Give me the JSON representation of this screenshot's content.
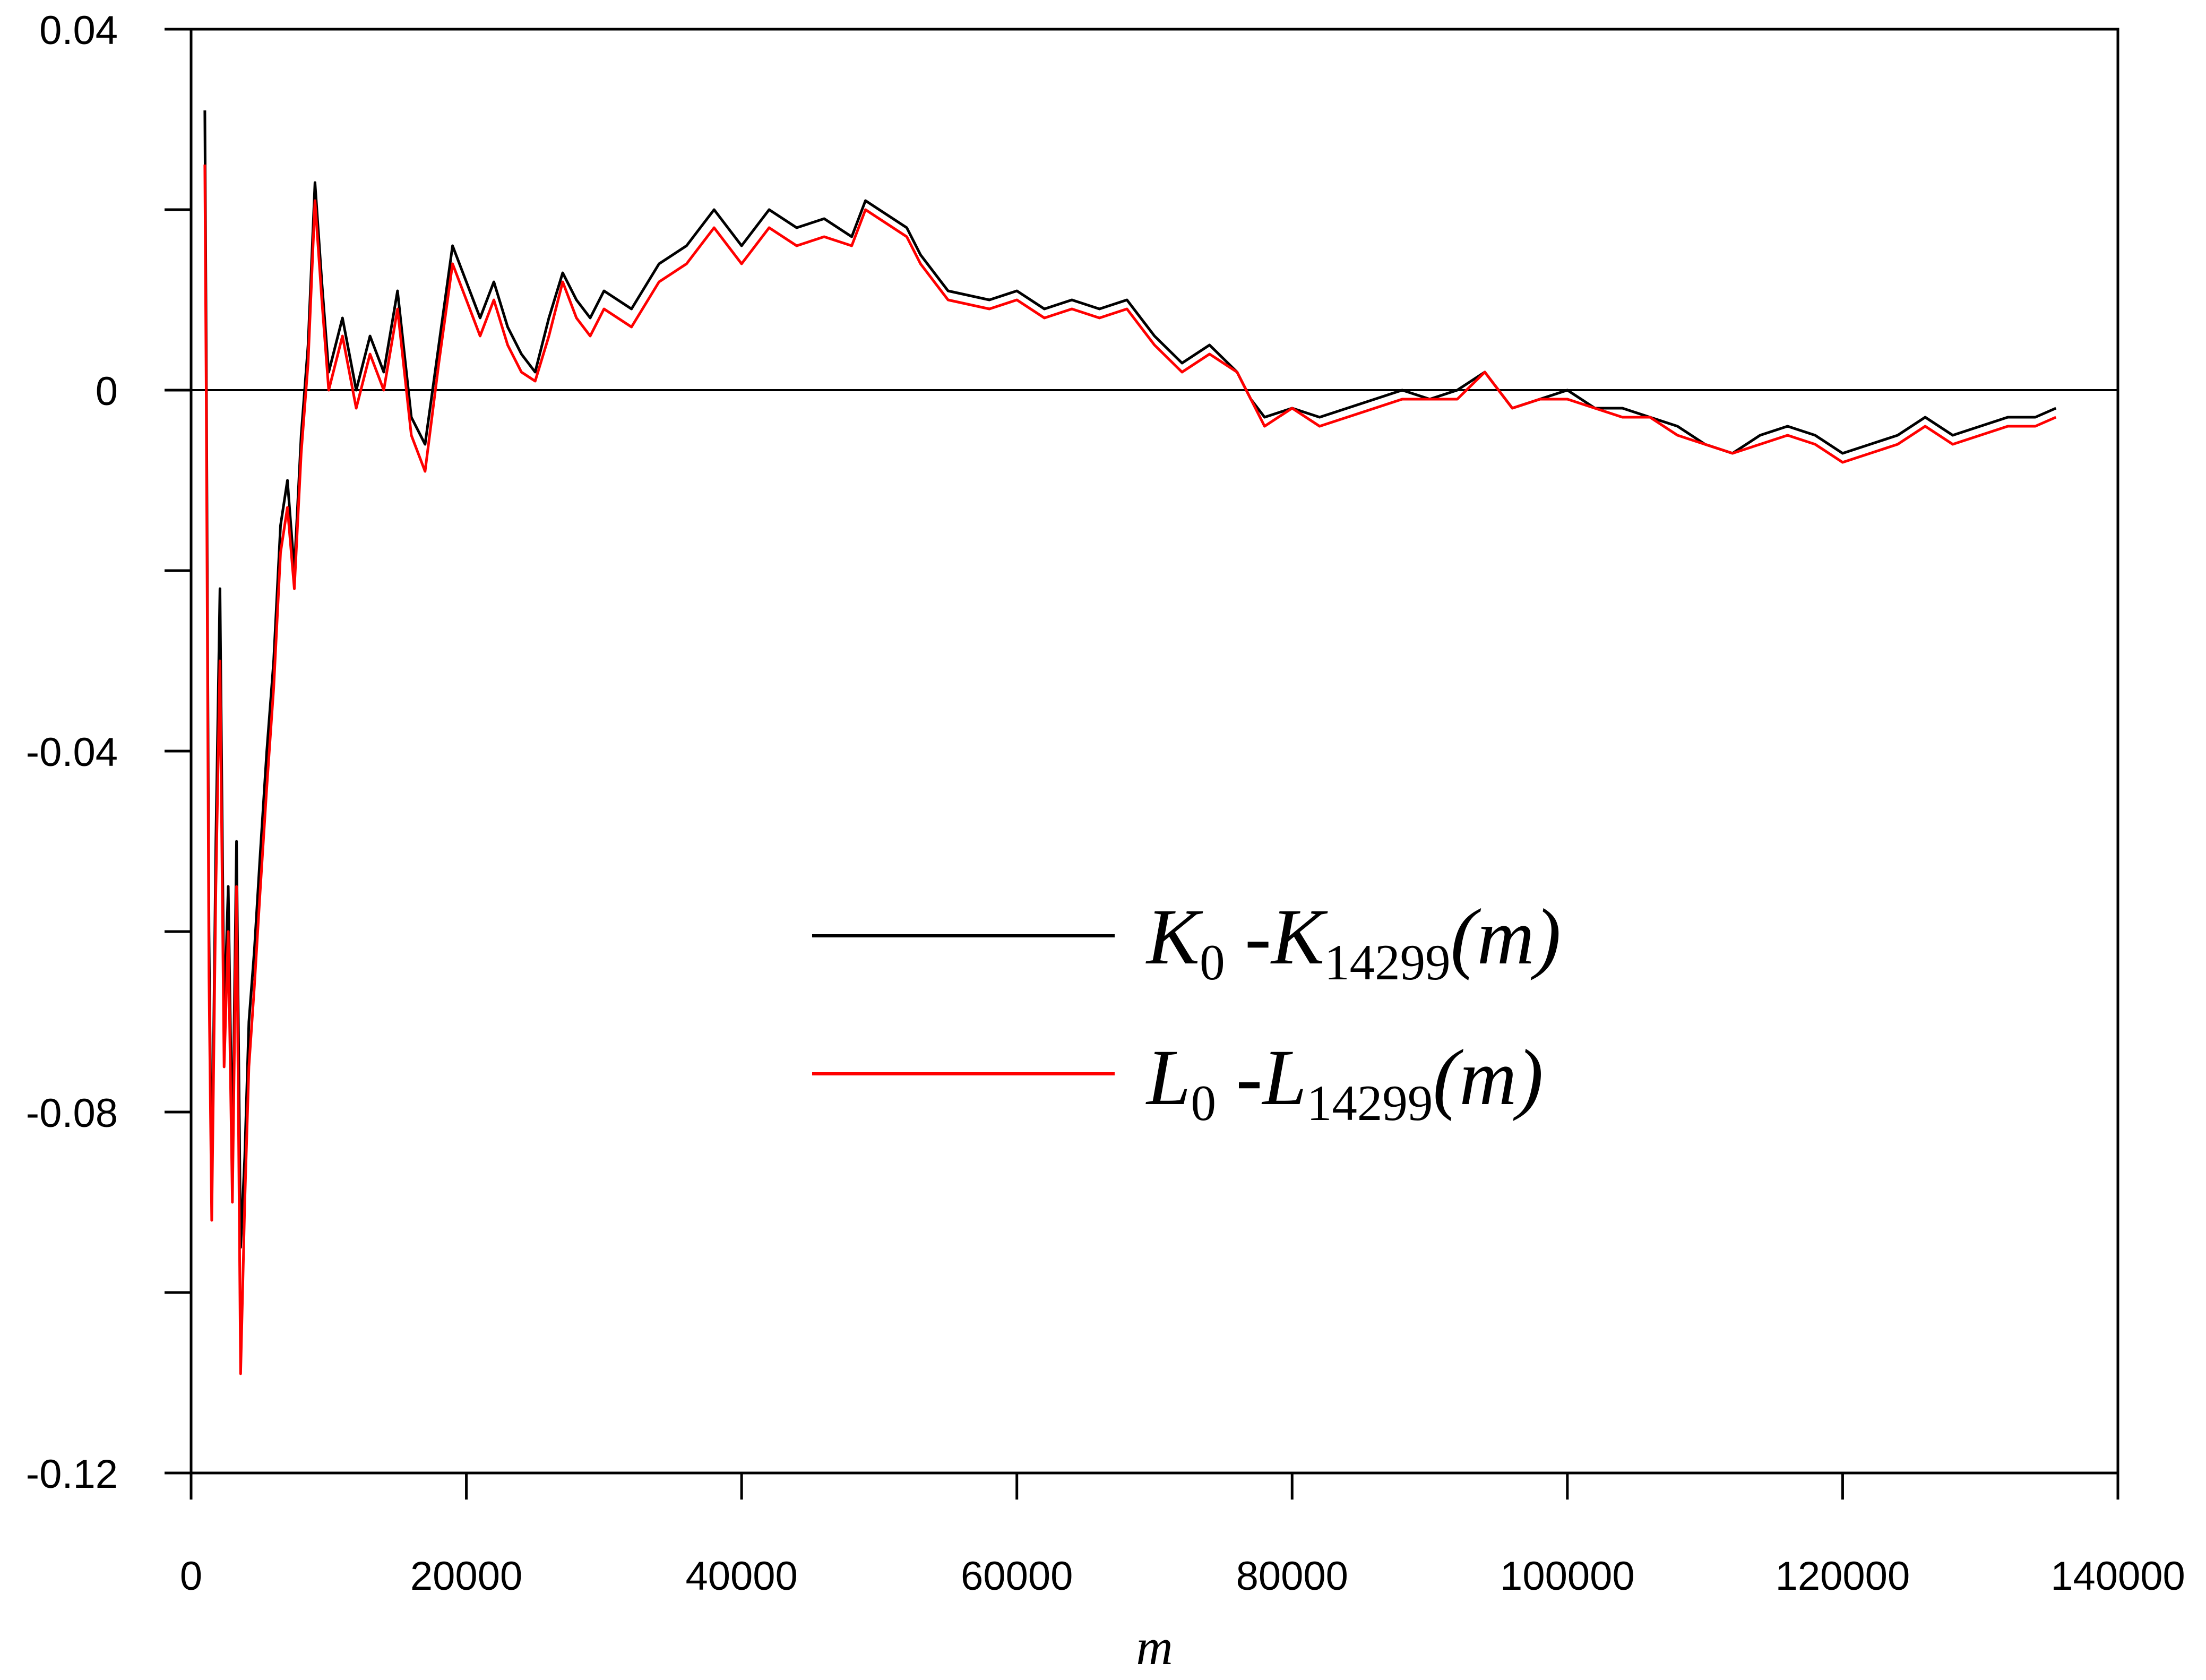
{
  "chart_data": {
    "type": "line",
    "title": "",
    "xlabel": "m",
    "ylabel": "",
    "xlim": [
      0,
      140000
    ],
    "ylim": [
      -0.12,
      0.04
    ],
    "x_ticks": [
      0,
      20000,
      40000,
      60000,
      80000,
      100000,
      120000,
      140000
    ],
    "x_tick_labels": [
      "0",
      "20000",
      "40000",
      "60000",
      "80000",
      "100000",
      "120000",
      "140000"
    ],
    "y_ticks": [
      -0.12,
      -0.1,
      -0.08,
      -0.06,
      -0.04,
      -0.02,
      0,
      0.02,
      0.04
    ],
    "y_tick_labels": {
      "-0.12": "-0.12",
      "-0.08": "-0.08",
      "-0.04": "-0.04",
      "0": "0",
      "0.04": "0.04"
    },
    "reference_line_y": 0,
    "grid": false,
    "legend_position": "center-right",
    "series": [
      {
        "name": "K0 -K14299(m)",
        "legend": {
          "main1": "K",
          "sub1": "0",
          "sep": " -",
          "main2": "K",
          "sub2": "14299",
          "arg": "(m)"
        },
        "color": "#000000",
        "x": [
          1000,
          1100,
          1300,
          1500,
          1800,
          2100,
          2400,
          2700,
          3000,
          3300,
          3600,
          3900,
          4200,
          4600,
          5000,
          5500,
          6000,
          6500,
          7000,
          7500,
          8000,
          8500,
          9000,
          9500,
          10000,
          11000,
          12000,
          13000,
          14000,
          15000,
          16000,
          17000,
          18000,
          19000,
          20000,
          21000,
          22000,
          23000,
          24000,
          25000,
          26000,
          27000,
          28000,
          29000,
          30000,
          32000,
          34000,
          36000,
          38000,
          40000,
          42000,
          44000,
          46000,
          48000,
          49000,
          50000,
          52000,
          53000,
          55000,
          58000,
          60000,
          62000,
          64000,
          66000,
          68000,
          70000,
          72000,
          74000,
          76000,
          77000,
          78000,
          80000,
          82000,
          84000,
          86000,
          88000,
          90000,
          92000,
          94000,
          96000,
          98000,
          100000,
          102000,
          104000,
          106000,
          108000,
          110000,
          112000,
          114000,
          116000,
          118000,
          120000,
          122000,
          124000,
          126000,
          128000,
          130000,
          132000,
          134000,
          135500
        ],
        "y": [
          0.031,
          0.005,
          -0.06,
          -0.09,
          -0.05,
          -0.022,
          -0.07,
          -0.055,
          -0.085,
          -0.05,
          -0.095,
          -0.085,
          -0.07,
          -0.062,
          -0.052,
          -0.04,
          -0.03,
          -0.015,
          -0.01,
          -0.02,
          -0.005,
          0.005,
          0.023,
          0.012,
          0.002,
          0.008,
          0.0,
          0.006,
          0.002,
          0.011,
          -0.003,
          -0.006,
          0.005,
          0.016,
          0.012,
          0.008,
          0.012,
          0.007,
          0.004,
          0.002,
          0.008,
          0.013,
          0.01,
          0.008,
          0.011,
          0.009,
          0.014,
          0.016,
          0.02,
          0.016,
          0.02,
          0.018,
          0.019,
          0.017,
          0.021,
          0.02,
          0.018,
          0.015,
          0.011,
          0.01,
          0.011,
          0.009,
          0.01,
          0.009,
          0.01,
          0.006,
          0.003,
          0.005,
          0.002,
          -0.001,
          -0.003,
          -0.002,
          -0.003,
          -0.002,
          -0.001,
          0.0,
          -0.001,
          0.0,
          0.002,
          -0.002,
          -0.001,
          0.0,
          -0.002,
          -0.002,
          -0.003,
          -0.004,
          -0.006,
          -0.007,
          -0.005,
          -0.004,
          -0.005,
          -0.007,
          -0.006,
          -0.005,
          -0.003,
          -0.005,
          -0.004,
          -0.003,
          -0.003,
          -0.002
        ]
      },
      {
        "name": "L0 -L14299(m)",
        "legend": {
          "main1": "L",
          "sub1": "0",
          "sep": " -",
          "main2": "L",
          "sub2": "14299",
          "arg": "(m)"
        },
        "color": "#ff0000",
        "x": [
          1000,
          1100,
          1300,
          1500,
          1800,
          2100,
          2400,
          2700,
          3000,
          3300,
          3600,
          3900,
          4200,
          4600,
          5000,
          5500,
          6000,
          6500,
          7000,
          7500,
          8000,
          8500,
          9000,
          9500,
          10000,
          11000,
          12000,
          13000,
          14000,
          15000,
          16000,
          17000,
          18000,
          19000,
          20000,
          21000,
          22000,
          23000,
          24000,
          25000,
          26000,
          27000,
          28000,
          29000,
          30000,
          32000,
          34000,
          36000,
          38000,
          40000,
          42000,
          44000,
          46000,
          48000,
          49000,
          50000,
          52000,
          53000,
          55000,
          58000,
          60000,
          62000,
          64000,
          66000,
          68000,
          70000,
          72000,
          74000,
          76000,
          77000,
          78000,
          80000,
          82000,
          84000,
          86000,
          88000,
          90000,
          92000,
          94000,
          96000,
          98000,
          100000,
          102000,
          104000,
          106000,
          108000,
          110000,
          112000,
          114000,
          116000,
          118000,
          120000,
          122000,
          124000,
          126000,
          128000,
          130000,
          132000,
          134000,
          135500
        ],
        "y": [
          0.025,
          0.0,
          -0.065,
          -0.092,
          -0.055,
          -0.03,
          -0.075,
          -0.06,
          -0.09,
          -0.055,
          -0.109,
          -0.09,
          -0.075,
          -0.066,
          -0.056,
          -0.044,
          -0.033,
          -0.018,
          -0.013,
          -0.022,
          -0.007,
          0.003,
          0.021,
          0.01,
          0.0,
          0.006,
          -0.002,
          0.004,
          0.0,
          0.009,
          -0.005,
          -0.009,
          0.003,
          0.014,
          0.01,
          0.006,
          0.01,
          0.005,
          0.002,
          0.001,
          0.006,
          0.012,
          0.008,
          0.006,
          0.009,
          0.007,
          0.012,
          0.014,
          0.018,
          0.014,
          0.018,
          0.016,
          0.017,
          0.016,
          0.02,
          0.019,
          0.017,
          0.014,
          0.01,
          0.009,
          0.01,
          0.008,
          0.009,
          0.008,
          0.009,
          0.005,
          0.002,
          0.004,
          0.002,
          -0.001,
          -0.004,
          -0.002,
          -0.004,
          -0.003,
          -0.002,
          -0.001,
          -0.001,
          -0.001,
          0.002,
          -0.002,
          -0.001,
          -0.001,
          -0.002,
          -0.003,
          -0.003,
          -0.005,
          -0.006,
          -0.007,
          -0.006,
          -0.005,
          -0.006,
          -0.008,
          -0.007,
          -0.006,
          -0.004,
          -0.006,
          -0.005,
          -0.004,
          -0.004,
          -0.003
        ]
      }
    ]
  }
}
